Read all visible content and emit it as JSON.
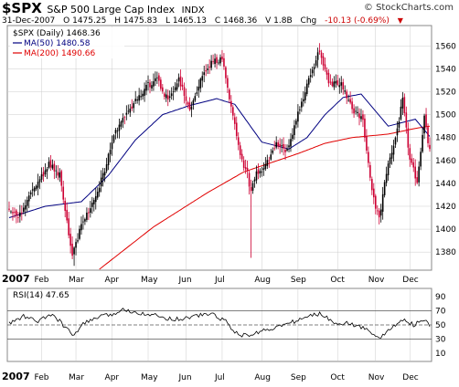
{
  "header": {
    "ticker": "$SPX",
    "name": "S&P 500 Large Cap Index",
    "exchange": "INDX",
    "brand": "© StockCharts.com"
  },
  "quote": {
    "date": "31-Dec-2007",
    "open": "O 1475.25",
    "high": "H 1475.83",
    "low": "L 1465.13",
    "close": "C 1468.36",
    "volume": "V 1.8B",
    "chg_label": "Chg",
    "chg_value": "-10.13 (-0.69%)"
  },
  "legend": {
    "price": "$SPX (Daily) 1468.36",
    "ma50": "MA(50) 1480.58",
    "ma200": "MA(200) 1490.66",
    "rsi": "RSI(14) 47.65"
  },
  "colors": {
    "price_up": "#000000",
    "price_down": "#cc0033",
    "ma50": "#000080",
    "ma200": "#e00000",
    "rsi_line": "#000000",
    "grid": "#cccccc"
  },
  "chart_data": [
    {
      "type": "candlestick",
      "title": "$SPX (Daily) 1468.36",
      "year_label": "2007",
      "categories": [
        "Feb",
        "Mar",
        "Apr",
        "May",
        "Jun",
        "Jul",
        "Aug",
        "Sep",
        "Oct",
        "Nov",
        "Dec"
      ],
      "y_ticks": [
        1380,
        1400,
        1420,
        1440,
        1460,
        1480,
        1500,
        1520,
        1540,
        1560
      ],
      "ylim": [
        1365,
        1577
      ],
      "grid": true,
      "series": [
        {
          "name": "$SPX (Daily) 1468.36",
          "anchor_closes": [
            [
              0,
              1418
            ],
            [
              5,
              1410
            ],
            [
              10,
              1425
            ],
            [
              16,
              1440
            ],
            [
              22,
              1456
            ],
            [
              28,
              1448
            ],
            [
              33,
              1395
            ],
            [
              35,
              1375
            ],
            [
              40,
              1405
            ],
            [
              46,
              1422
            ],
            [
              52,
              1447
            ],
            [
              58,
              1482
            ],
            [
              64,
              1500
            ],
            [
              70,
              1512
            ],
            [
              76,
              1525
            ],
            [
              82,
              1530
            ],
            [
              88,
              1512
            ],
            [
              94,
              1532
            ],
            [
              100,
              1505
            ],
            [
              106,
              1530
            ],
            [
              112,
              1545
            ],
            [
              118,
              1548
            ],
            [
              124,
              1500
            ],
            [
              128,
              1462
            ],
            [
              132,
              1448
            ],
            [
              134,
              1432
            ],
            [
              137,
              1448
            ],
            [
              142,
              1455
            ],
            [
              148,
              1475
            ],
            [
              154,
              1468
            ],
            [
              160,
              1502
            ],
            [
              166,
              1530
            ],
            [
              172,
              1556
            ],
            [
              178,
              1525
            ],
            [
              184,
              1528
            ],
            [
              190,
              1505
            ],
            [
              196,
              1495
            ],
            [
              201,
              1432
            ],
            [
              205,
              1408
            ],
            [
              209,
              1450
            ],
            [
              214,
              1480
            ],
            [
              218,
              1512
            ],
            [
              222,
              1460
            ],
            [
              226,
              1442
            ],
            [
              230,
              1498
            ],
            [
              232,
              1476
            ],
            [
              233,
              1468
            ]
          ]
        },
        {
          "name": "MA(50) 1480.58",
          "anchor_values": [
            [
              0,
              1410
            ],
            [
              20,
              1420
            ],
            [
              40,
              1424
            ],
            [
              55,
              1447
            ],
            [
              70,
              1478
            ],
            [
              85,
              1500
            ],
            [
              100,
              1508
            ],
            [
              115,
              1514
            ],
            [
              125,
              1509
            ],
            [
              140,
              1476
            ],
            [
              155,
              1470
            ],
            [
              165,
              1480
            ],
            [
              175,
              1500
            ],
            [
              185,
              1515
            ],
            [
              195,
              1518
            ],
            [
              210,
              1490
            ],
            [
              225,
              1496
            ],
            [
              233,
              1481
            ]
          ]
        },
        {
          "name": "MA(200) 1490.66",
          "anchor_values": [
            [
              50,
              1365
            ],
            [
              80,
              1402
            ],
            [
              110,
              1432
            ],
            [
              130,
              1450
            ],
            [
              145,
              1458
            ],
            [
              160,
              1466
            ],
            [
              175,
              1475
            ],
            [
              190,
              1480
            ],
            [
              210,
              1483
            ],
            [
              225,
              1488
            ],
            [
              233,
              1490
            ]
          ]
        }
      ]
    },
    {
      "type": "line",
      "title": "RSI(14) 47.65",
      "year_label": "2007",
      "categories": [
        "Feb",
        "Mar",
        "Apr",
        "May",
        "Jun",
        "Jul",
        "Aug",
        "Sep",
        "Oct",
        "Nov",
        "Dec"
      ],
      "y_ticks": [
        10,
        30,
        50,
        70,
        90
      ],
      "ylim": [
        0,
        100
      ],
      "reference_lines": [
        30,
        50,
        70
      ],
      "series": [
        {
          "name": "RSI(14) 47.65",
          "anchor_values": [
            [
              0,
              52
            ],
            [
              8,
              62
            ],
            [
              16,
              55
            ],
            [
              24,
              65
            ],
            [
              32,
              45
            ],
            [
              36,
              33
            ],
            [
              40,
              50
            ],
            [
              48,
              60
            ],
            [
              56,
              64
            ],
            [
              64,
              72
            ],
            [
              70,
              68
            ],
            [
              78,
              65
            ],
            [
              86,
              60
            ],
            [
              94,
              58
            ],
            [
              102,
              62
            ],
            [
              112,
              66
            ],
            [
              120,
              55
            ],
            [
              126,
              38
            ],
            [
              132,
              34
            ],
            [
              140,
              42
            ],
            [
              150,
              48
            ],
            [
              158,
              55
            ],
            [
              166,
              62
            ],
            [
              172,
              66
            ],
            [
              180,
              54
            ],
            [
              188,
              52
            ],
            [
              196,
              46
            ],
            [
              202,
              38
            ],
            [
              206,
              32
            ],
            [
              212,
              46
            ],
            [
              218,
              58
            ],
            [
              224,
              50
            ],
            [
              230,
              57
            ],
            [
              233,
              47.65
            ]
          ]
        }
      ]
    }
  ]
}
